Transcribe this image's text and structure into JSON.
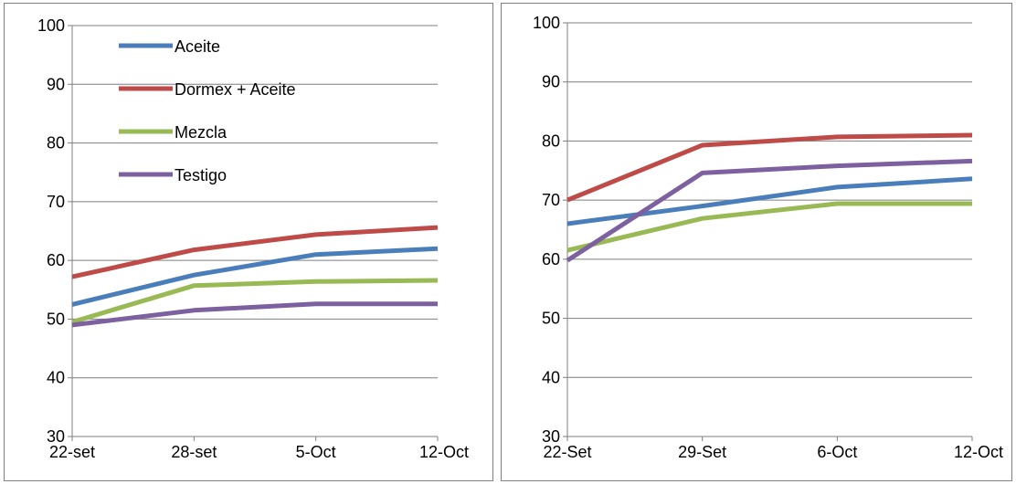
{
  "chart_data": [
    {
      "type": "line",
      "categories": [
        "22-set",
        "28-set",
        "5-Oct",
        "12-Oct"
      ],
      "ylim": [
        30,
        100
      ],
      "yticks": [
        30,
        40,
        50,
        60,
        70,
        80,
        90,
        100
      ],
      "grid": true,
      "legend": "top-left",
      "series": [
        {
          "name": "Aceite",
          "color": "#4a7ebb",
          "values": [
            52.5,
            57.5,
            61.0,
            62.0
          ]
        },
        {
          "name": "Dormex + Aceite",
          "color": "#be4b48",
          "values": [
            57.2,
            61.8,
            64.4,
            65.6
          ]
        },
        {
          "name": "Mezcla",
          "color": "#98b954",
          "values": [
            49.5,
            55.7,
            56.4,
            56.6
          ]
        },
        {
          "name": "Testigo",
          "color": "#7d60a0",
          "values": [
            49.0,
            51.5,
            52.6,
            52.6
          ]
        }
      ]
    },
    {
      "type": "line",
      "categories": [
        "22-Set",
        "29-Set",
        "6-Oct",
        "12-Oct"
      ],
      "ylim": [
        30,
        100
      ],
      "yticks": [
        30,
        40,
        50,
        60,
        70,
        80,
        90,
        100
      ],
      "grid": true,
      "series": [
        {
          "color": "#4a7ebb",
          "values": [
            66.0,
            69.0,
            72.2,
            73.6
          ]
        },
        {
          "color": "#be4b48",
          "values": [
            70.0,
            79.3,
            80.7,
            81.0
          ]
        },
        {
          "color": "#98b954",
          "values": [
            61.5,
            66.9,
            69.4,
            69.4
          ]
        },
        {
          "color": "#7d60a0",
          "values": [
            59.8,
            74.6,
            75.8,
            76.6
          ]
        }
      ]
    }
  ]
}
